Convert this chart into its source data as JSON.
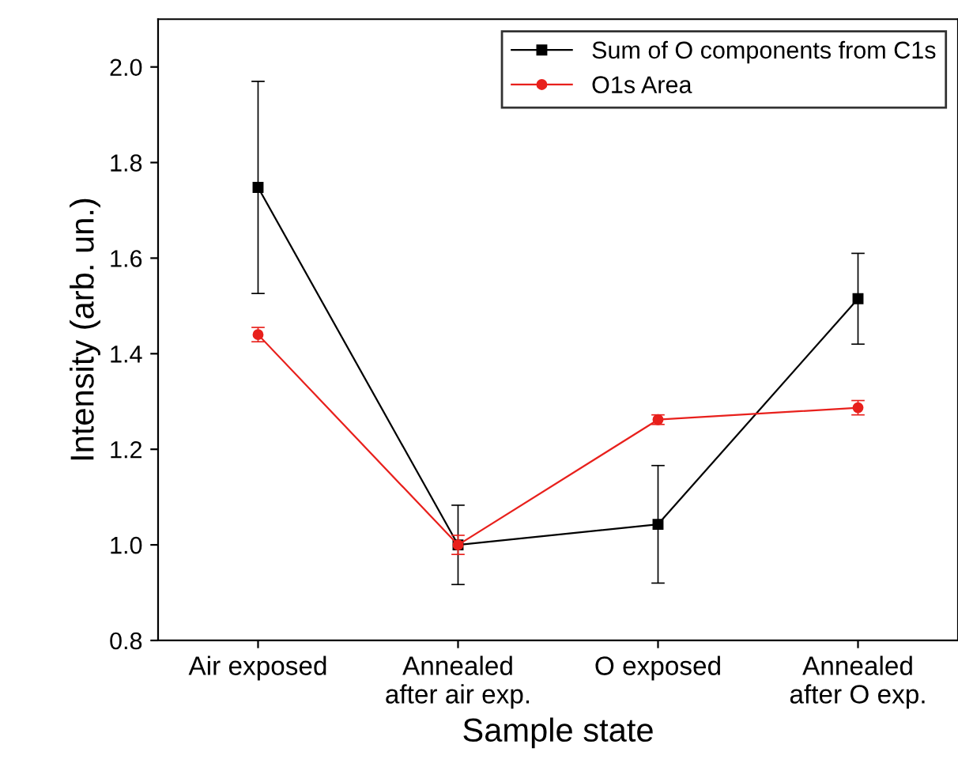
{
  "chart_data": {
    "type": "line",
    "xlabel": "Sample state",
    "ylabel": "Intensity (arb. un.)",
    "categories": [
      "Air exposed",
      "Annealed\nafter air exp.",
      "O exposed",
      "Annealed\nafter O exp."
    ],
    "series": [
      {
        "name": "Sum of O components from C1s",
        "color": "#000000",
        "values": [
          1.748,
          1.0,
          1.043,
          1.515
        ],
        "errors": [
          0.222,
          0.083,
          0.123,
          0.095
        ],
        "marker": "square"
      },
      {
        "name": "O1s Area",
        "color": "#e8201c",
        "values": [
          1.44,
          1.0,
          1.262,
          1.287
        ],
        "errors": [
          0.015,
          0.02,
          0.01,
          0.015
        ],
        "marker": "circle"
      }
    ],
    "ylim": [
      0.8,
      2.1
    ],
    "yticks": [
      0.8,
      {
        "value": 1.0,
        "label": "1.0"
      },
      1.2,
      1.4,
      1.6,
      1.8,
      {
        "value": 2.0,
        "label": "2.0"
      }
    ],
    "legend": "top right",
    "grid": false,
    "line_style": "solid"
  }
}
